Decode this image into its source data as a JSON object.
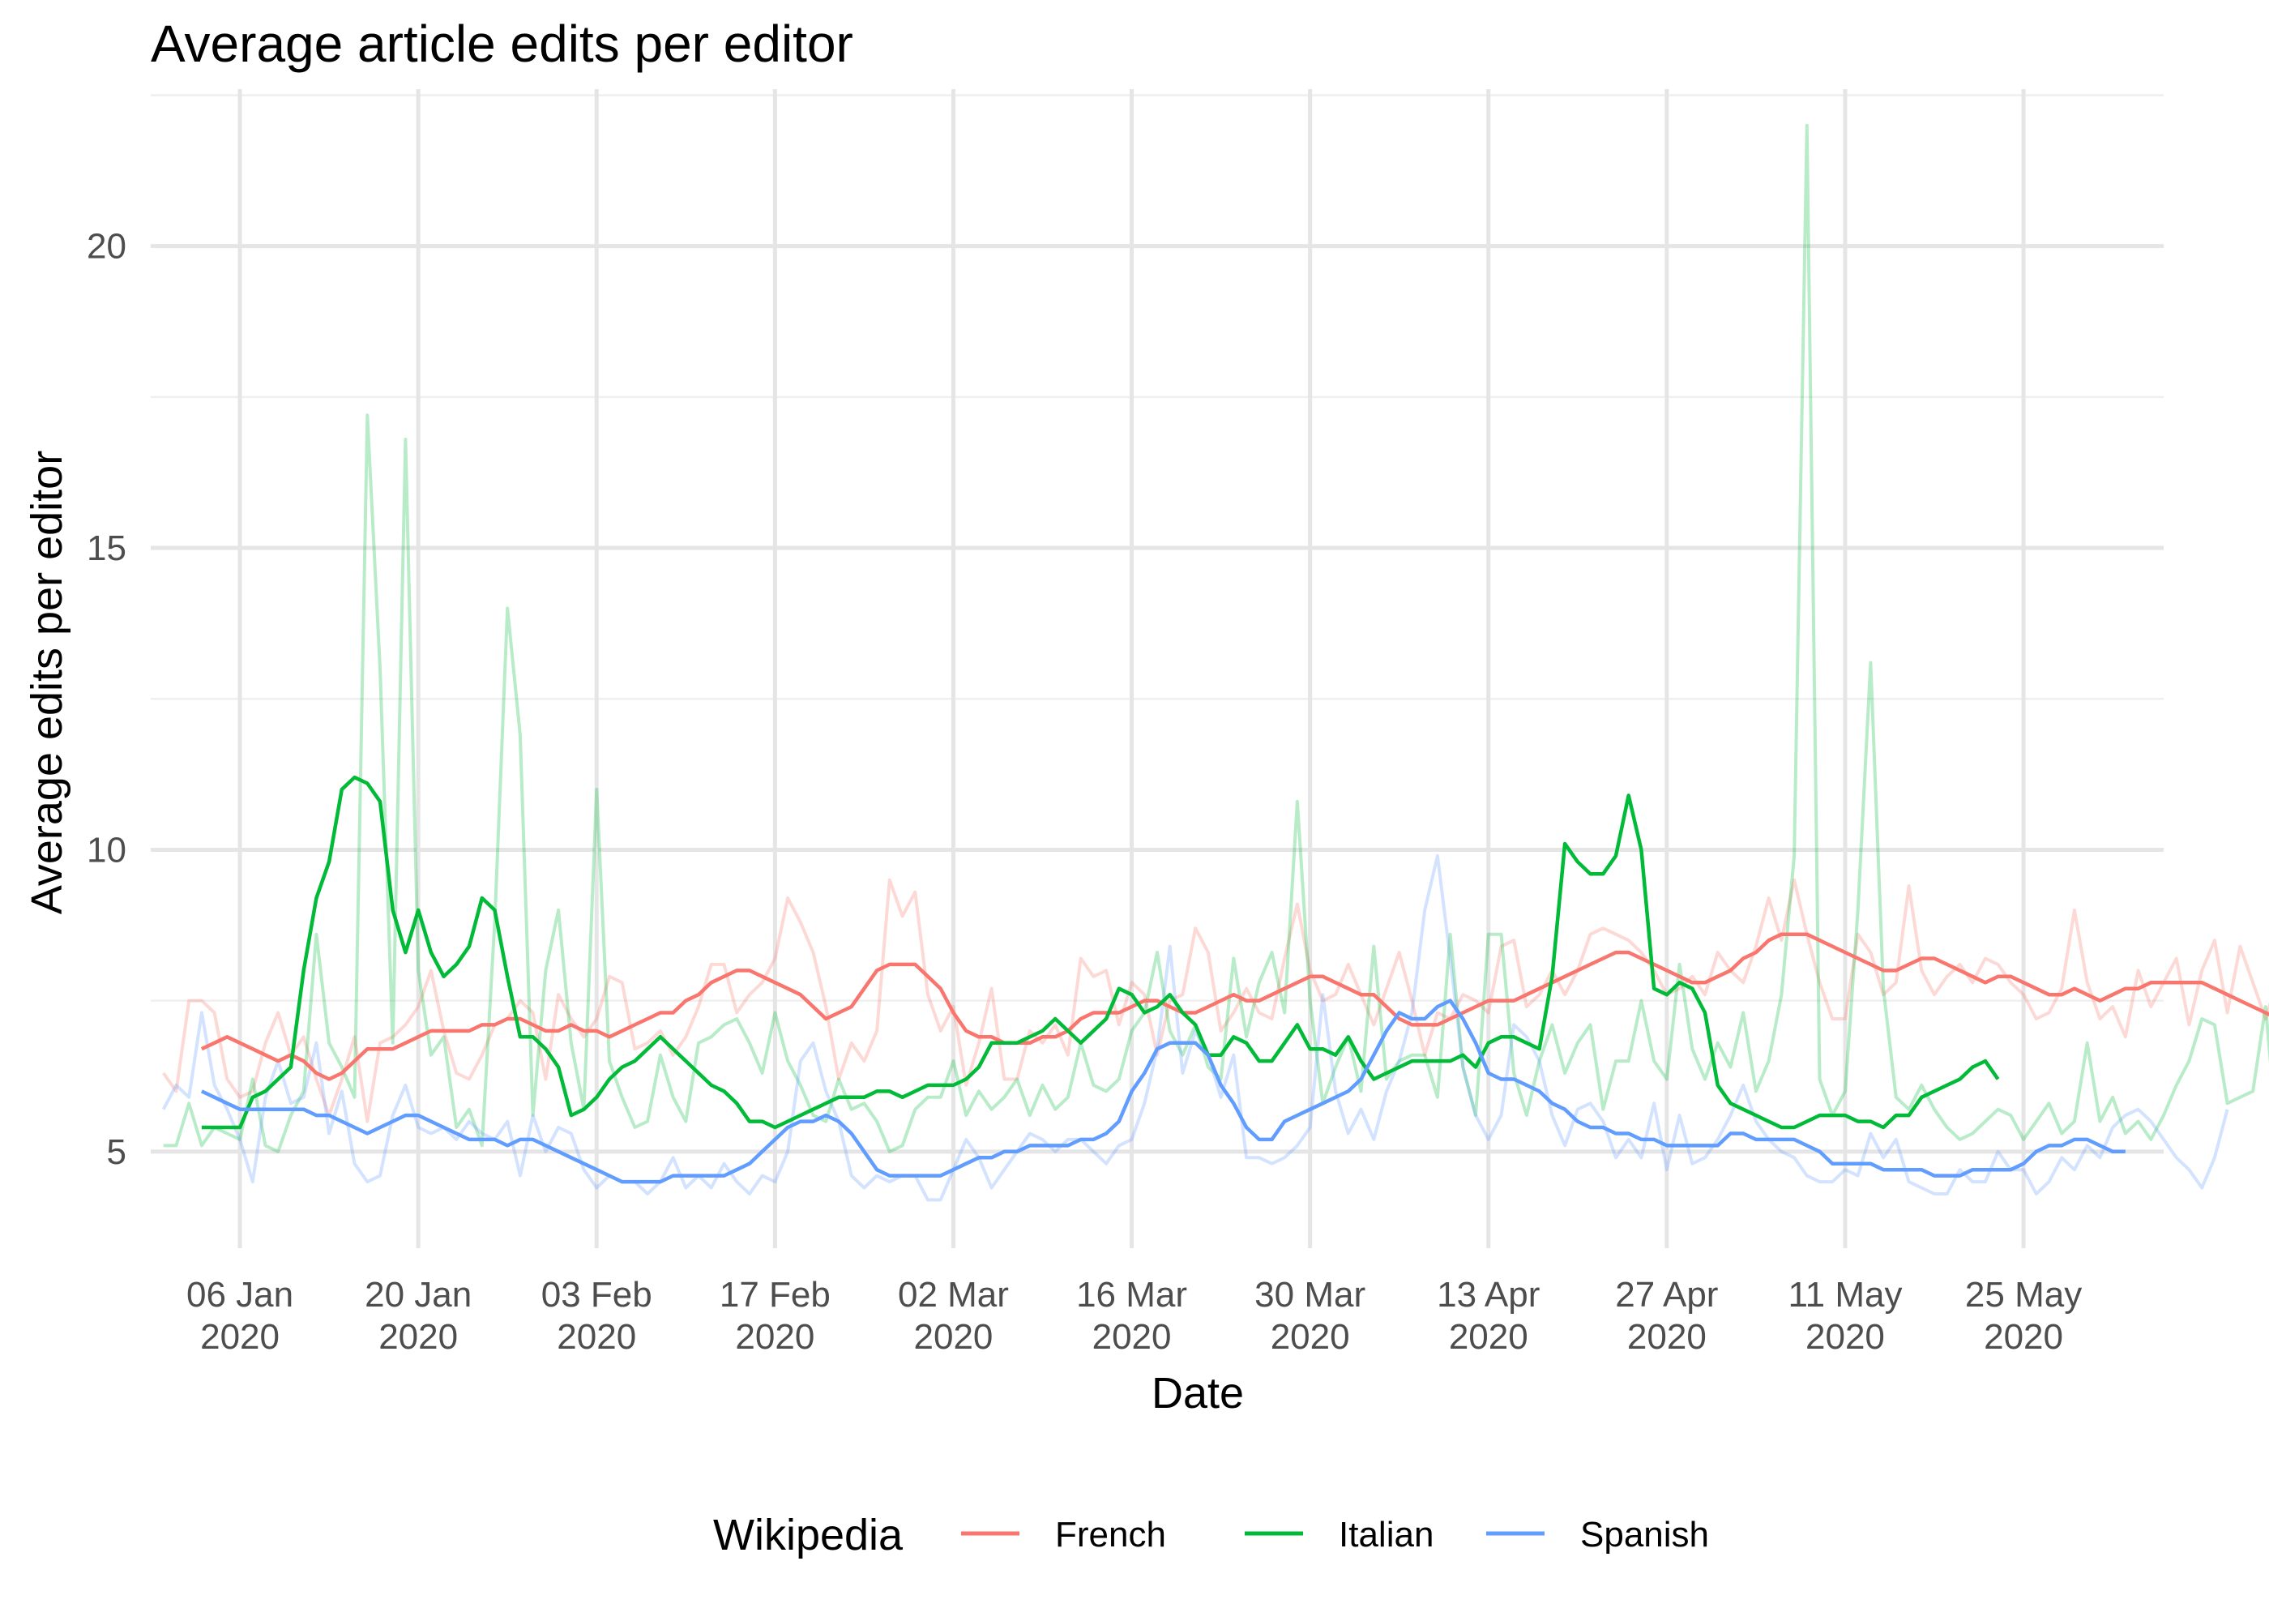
{
  "chart_data": {
    "type": "line",
    "title": "Average article edits per editor",
    "xlabel": "Date",
    "ylabel": "Average edits per editor",
    "x_ticks": [
      "06 Jan\n2020",
      "20 Jan\n2020",
      "03 Feb\n2020",
      "17 Feb\n2020",
      "02 Mar\n2020",
      "16 Mar\n2020",
      "30 Mar\n2020",
      "13 Apr\n2020",
      "27 Apr\n2020",
      "11 May\n2020",
      "25 May\n2020"
    ],
    "x_tick_dates": [
      "2020-01-06",
      "2020-01-20",
      "2020-02-03",
      "2020-02-17",
      "2020-03-02",
      "2020-03-16",
      "2020-03-30",
      "2020-04-13",
      "2020-04-27",
      "2020-05-11",
      "2020-05-25"
    ],
    "y_ticks": [
      "5",
      "10",
      "15",
      "20"
    ],
    "y_tick_values": [
      5,
      10,
      15,
      20
    ],
    "xlim": [
      "2019-12-30",
      "2020-06-05"
    ],
    "ylim": [
      3.4,
      22.6
    ],
    "grid": true,
    "legend": {
      "title": "Wikipedia",
      "position": "bottom",
      "entries": [
        "French",
        "Italian",
        "Spanish"
      ]
    },
    "colors": {
      "French": "#F8766D",
      "Italian": "#00BA38",
      "Spanish": "#619CFF"
    },
    "series": [
      {
        "name": "French",
        "kind": "daily",
        "start": "2019-12-31",
        "values": [
          6.3,
          6.0,
          7.5,
          7.5,
          7.3,
          6.2,
          5.9,
          6.0,
          6.8,
          7.3,
          6.6,
          6.9,
          6.2,
          5.6,
          6.2,
          6.9,
          5.5,
          6.8,
          6.9,
          7.1,
          7.4,
          8.0,
          7.0,
          6.3,
          6.2,
          6.6,
          7.1,
          7.2,
          7.5,
          7.3,
          6.2,
          7.6,
          7.2,
          6.9,
          7.2,
          7.9,
          7.8,
          6.7,
          6.8,
          7.0,
          6.6,
          6.9,
          7.4,
          8.1,
          8.1,
          7.3,
          7.6,
          7.8,
          8.2,
          9.2,
          8.8,
          8.3,
          7.4,
          6.2,
          6.8,
          6.5,
          7.0,
          9.5,
          8.9,
          9.3,
          7.6,
          7.0,
          7.4,
          6.1,
          6.8,
          7.7,
          6.2,
          6.2,
          7.0,
          6.8,
          7.1,
          6.6,
          8.2,
          7.9,
          8.0,
          7.1,
          7.8,
          7.6,
          6.6,
          7.5,
          7.6,
          8.7,
          8.3,
          7.0,
          7.3,
          7.7,
          7.3,
          7.2,
          8.2,
          9.1,
          8.0,
          7.5,
          7.6,
          8.1,
          7.6,
          7.1,
          7.7,
          8.3,
          7.5,
          6.6,
          7.3,
          7.2,
          7.6,
          7.5,
          7.3,
          8.4,
          8.5,
          7.4,
          7.6,
          8.0,
          7.6,
          8.0,
          8.6,
          8.7,
          8.6,
          8.5,
          8.3,
          8.0,
          7.6,
          7.7,
          7.9,
          7.6,
          8.3,
          8.0,
          7.8,
          8.4,
          9.2,
          8.5,
          9.5,
          8.6,
          7.8,
          7.2,
          7.2,
          8.6,
          8.3,
          7.6,
          7.8,
          9.4,
          8.0,
          7.6,
          7.9,
          8.1,
          7.8,
          8.2,
          8.1,
          7.8,
          7.6,
          7.2,
          7.3,
          7.7,
          9.0,
          7.8,
          7.2,
          7.4,
          6.9,
          8.0,
          7.4,
          7.8,
          8.2,
          7.1,
          8.0,
          8.5,
          7.3,
          8.4,
          7.8,
          7.2,
          7.9,
          7.8,
          7.3,
          7.5,
          6.9,
          6.5,
          7.4,
          7.7
        ]
      },
      {
        "name": "Italian",
        "kind": "daily",
        "start": "2019-12-31",
        "values": [
          5.1,
          5.1,
          5.8,
          5.1,
          5.4,
          5.3,
          5.2,
          6.2,
          5.1,
          5.0,
          5.6,
          6.0,
          8.6,
          6.8,
          6.4,
          5.9,
          17.2,
          13.0,
          6.8,
          16.8,
          8.0,
          6.6,
          6.9,
          5.4,
          5.7,
          5.1,
          8.8,
          14.0,
          11.9,
          5.6,
          8.0,
          9.0,
          6.8,
          5.7,
          11.0,
          6.5,
          5.9,
          5.4,
          5.5,
          6.6,
          5.9,
          5.5,
          6.8,
          6.9,
          7.1,
          7.2,
          6.8,
          6.3,
          7.3,
          6.5,
          6.1,
          5.6,
          5.5,
          6.2,
          5.7,
          5.8,
          5.5,
          5.0,
          5.1,
          5.7,
          5.9,
          5.9,
          6.5,
          5.6,
          6.0,
          5.7,
          5.9,
          6.2,
          5.6,
          6.1,
          5.7,
          5.9,
          6.8,
          6.1,
          6.0,
          6.2,
          7.0,
          7.3,
          8.3,
          7.0,
          6.6,
          7.1,
          6.4,
          6.2,
          8.2,
          6.9,
          7.8,
          8.3,
          7.3,
          10.8,
          7.5,
          5.8,
          6.4,
          6.9,
          6.0,
          8.4,
          6.2,
          6.5,
          6.6,
          6.6,
          5.9,
          8.6,
          6.4,
          5.6,
          8.6,
          8.6,
          6.3,
          5.6,
          6.5,
          7.1,
          6.3,
          6.8,
          7.1,
          5.7,
          6.5,
          6.5,
          7.5,
          6.5,
          6.2,
          8.1,
          6.7,
          6.2,
          6.8,
          6.4,
          7.3,
          6.0,
          6.5,
          7.6,
          9.9,
          22.0,
          6.2,
          5.6,
          6.0,
          9.0,
          13.1,
          7.7,
          5.9,
          5.7,
          6.1,
          5.7,
          5.4,
          5.2,
          5.3,
          5.5,
          5.7,
          5.6,
          5.2,
          5.5,
          5.8,
          5.3,
          5.5,
          6.8,
          5.5,
          5.9,
          5.3,
          5.5,
          5.2,
          5.6,
          6.1,
          6.5,
          7.2,
          7.1,
          5.8,
          5.9,
          6.0,
          7.4,
          5.0
        ]
      },
      {
        "name": "Spanish",
        "kind": "daily",
        "start": "2019-12-31",
        "values": [
          5.7,
          6.1,
          5.9,
          7.3,
          6.1,
          5.7,
          5.2,
          4.5,
          5.9,
          6.5,
          5.8,
          5.9,
          6.8,
          5.3,
          6.0,
          4.8,
          4.5,
          4.6,
          5.6,
          6.1,
          5.4,
          5.3,
          5.4,
          5.2,
          5.5,
          5.3,
          5.2,
          5.5,
          4.6,
          5.6,
          5.0,
          5.4,
          5.3,
          4.7,
          4.4,
          4.6,
          4.5,
          4.5,
          4.3,
          4.5,
          4.9,
          4.4,
          4.6,
          4.4,
          4.8,
          4.5,
          4.3,
          4.6,
          4.5,
          5.0,
          6.5,
          6.8,
          6.0,
          5.5,
          4.6,
          4.4,
          4.6,
          4.5,
          4.6,
          4.6,
          4.2,
          4.2,
          4.7,
          5.2,
          4.9,
          4.4,
          4.7,
          5.0,
          5.3,
          5.2,
          5.0,
          5.2,
          5.2,
          5.0,
          4.8,
          5.1,
          5.2,
          5.8,
          6.7,
          8.4,
          6.3,
          7.0,
          6.6,
          5.9,
          6.6,
          4.9,
          4.9,
          4.8,
          4.9,
          5.1,
          5.4,
          7.6,
          6.0,
          5.3,
          5.7,
          5.2,
          6.0,
          6.5,
          7.3,
          9.0,
          9.9,
          8.2,
          6.4,
          5.6,
          5.2,
          5.6,
          7.1,
          6.9,
          6.5,
          5.6,
          5.1,
          5.7,
          5.8,
          5.5,
          4.9,
          5.2,
          4.9,
          5.8,
          4.7,
          5.6,
          4.8,
          4.9,
          5.2,
          5.6,
          6.1,
          5.5,
          5.2,
          5.0,
          4.9,
          4.6,
          4.5,
          4.5,
          4.7,
          4.6,
          5.3,
          4.9,
          5.2,
          4.5,
          4.4,
          4.3,
          4.3,
          4.7,
          4.5,
          4.5,
          5.0,
          4.7,
          4.7,
          4.3,
          4.5,
          4.9,
          4.7,
          5.1,
          4.9,
          5.4,
          5.6,
          5.7,
          5.5,
          5.2,
          4.9,
          4.7,
          4.4,
          4.9,
          5.7
        ]
      },
      {
        "name": "French",
        "kind": "smoothed",
        "start": "2020-01-03",
        "values": [
          6.7,
          6.8,
          6.9,
          6.8,
          6.7,
          6.6,
          6.5,
          6.6,
          6.5,
          6.3,
          6.2,
          6.3,
          6.5,
          6.7,
          6.7,
          6.7,
          6.8,
          6.9,
          7.0,
          7.0,
          7.0,
          7.0,
          7.1,
          7.1,
          7.2,
          7.2,
          7.1,
          7.0,
          7.0,
          7.1,
          7.0,
          7.0,
          6.9,
          7.0,
          7.1,
          7.2,
          7.3,
          7.3,
          7.5,
          7.6,
          7.8,
          7.9,
          8.0,
          8.0,
          7.9,
          7.8,
          7.7,
          7.6,
          7.4,
          7.2,
          7.3,
          7.4,
          7.7,
          8.0,
          8.1,
          8.1,
          8.1,
          7.9,
          7.7,
          7.3,
          7.0,
          6.9,
          6.9,
          6.8,
          6.8,
          6.8,
          6.9,
          6.9,
          7.0,
          7.2,
          7.3,
          7.3,
          7.3,
          7.4,
          7.5,
          7.5,
          7.4,
          7.3,
          7.3,
          7.4,
          7.5,
          7.6,
          7.5,
          7.5,
          7.6,
          7.7,
          7.8,
          7.9,
          7.9,
          7.8,
          7.7,
          7.6,
          7.6,
          7.4,
          7.2,
          7.1,
          7.1,
          7.1,
          7.2,
          7.3,
          7.4,
          7.5,
          7.5,
          7.5,
          7.6,
          7.7,
          7.8,
          7.9,
          8.0,
          8.1,
          8.2,
          8.3,
          8.3,
          8.2,
          8.1,
          8.0,
          7.9,
          7.8,
          7.8,
          7.9,
          8.0,
          8.2,
          8.3,
          8.5,
          8.6,
          8.6,
          8.6,
          8.5,
          8.4,
          8.3,
          8.2,
          8.1,
          8.0,
          8.0,
          8.1,
          8.2,
          8.2,
          8.1,
          8.0,
          7.9,
          7.8,
          7.9,
          7.9,
          7.8,
          7.7,
          7.6,
          7.6,
          7.7,
          7.6,
          7.5,
          7.6,
          7.7,
          7.7,
          7.8,
          7.8,
          7.8,
          7.8,
          7.8,
          7.7,
          7.6,
          7.5,
          7.4,
          7.3,
          7.2,
          7.2
        ]
      },
      {
        "name": "Italian",
        "kind": "smoothed",
        "start": "2020-01-03",
        "values": [
          5.4,
          5.4,
          5.4,
          5.4,
          5.9,
          6.0,
          6.2,
          6.4,
          8.0,
          9.2,
          9.8,
          11.0,
          11.2,
          11.1,
          10.8,
          9.0,
          8.3,
          9.0,
          8.3,
          7.9,
          8.1,
          8.4,
          9.2,
          9.0,
          7.9,
          6.9,
          6.9,
          6.7,
          6.4,
          5.6,
          5.7,
          5.9,
          6.2,
          6.4,
          6.5,
          6.7,
          6.9,
          6.7,
          6.5,
          6.3,
          6.1,
          6.0,
          5.8,
          5.5,
          5.5,
          5.4,
          5.5,
          5.6,
          5.7,
          5.8,
          5.9,
          5.9,
          5.9,
          6.0,
          6.0,
          5.9,
          6.0,
          6.1,
          6.1,
          6.1,
          6.2,
          6.4,
          6.8,
          6.8,
          6.8,
          6.9,
          7.0,
          7.2,
          7.0,
          6.8,
          7.0,
          7.2,
          7.7,
          7.6,
          7.3,
          7.4,
          7.6,
          7.3,
          7.1,
          6.6,
          6.6,
          6.9,
          6.8,
          6.5,
          6.5,
          6.8,
          7.1,
          6.7,
          6.7,
          6.6,
          6.9,
          6.5,
          6.2,
          6.3,
          6.4,
          6.5,
          6.5,
          6.5,
          6.5,
          6.6,
          6.4,
          6.8,
          6.9,
          6.9,
          6.8,
          6.7,
          7.9,
          10.1,
          9.8,
          9.6,
          9.6,
          9.9,
          10.9,
          10.0,
          7.7,
          7.6,
          7.8,
          7.7,
          7.3,
          6.1,
          5.8,
          5.7,
          5.6,
          5.5,
          5.4,
          5.4,
          5.5,
          5.6,
          5.6,
          5.6,
          5.5,
          5.5,
          5.4,
          5.6,
          5.6,
          5.9,
          6.0,
          6.1,
          6.2,
          6.4,
          6.5,
          6.2
        ]
      },
      {
        "name": "Spanish",
        "kind": "smoothed",
        "start": "2020-01-03",
        "values": [
          6.0,
          5.9,
          5.8,
          5.7,
          5.7,
          5.7,
          5.7,
          5.7,
          5.7,
          5.6,
          5.6,
          5.5,
          5.4,
          5.3,
          5.4,
          5.5,
          5.6,
          5.6,
          5.5,
          5.4,
          5.3,
          5.2,
          5.2,
          5.2,
          5.1,
          5.2,
          5.2,
          5.1,
          5.0,
          4.9,
          4.8,
          4.7,
          4.6,
          4.5,
          4.5,
          4.5,
          4.5,
          4.6,
          4.6,
          4.6,
          4.6,
          4.6,
          4.7,
          4.8,
          5.0,
          5.2,
          5.4,
          5.5,
          5.5,
          5.6,
          5.5,
          5.3,
          5.0,
          4.7,
          4.6,
          4.6,
          4.6,
          4.6,
          4.6,
          4.7,
          4.8,
          4.9,
          4.9,
          5.0,
          5.0,
          5.1,
          5.1,
          5.1,
          5.1,
          5.2,
          5.2,
          5.3,
          5.5,
          6.0,
          6.3,
          6.7,
          6.8,
          6.8,
          6.8,
          6.6,
          6.1,
          5.8,
          5.4,
          5.2,
          5.2,
          5.5,
          5.6,
          5.7,
          5.8,
          5.9,
          6.0,
          6.2,
          6.6,
          7.0,
          7.3,
          7.2,
          7.2,
          7.4,
          7.5,
          7.2,
          6.8,
          6.3,
          6.2,
          6.2,
          6.1,
          6.0,
          5.8,
          5.7,
          5.5,
          5.4,
          5.4,
          5.3,
          5.3,
          5.2,
          5.2,
          5.1,
          5.1,
          5.1,
          5.1,
          5.1,
          5.3,
          5.3,
          5.2,
          5.2,
          5.2,
          5.2,
          5.1,
          5.0,
          4.8,
          4.8,
          4.8,
          4.8,
          4.7,
          4.7,
          4.7,
          4.7,
          4.6,
          4.6,
          4.6,
          4.7,
          4.7,
          4.7,
          4.7,
          4.8,
          5.0,
          5.1,
          5.1,
          5.2,
          5.2,
          5.1,
          5.0,
          5.0
        ]
      }
    ]
  }
}
